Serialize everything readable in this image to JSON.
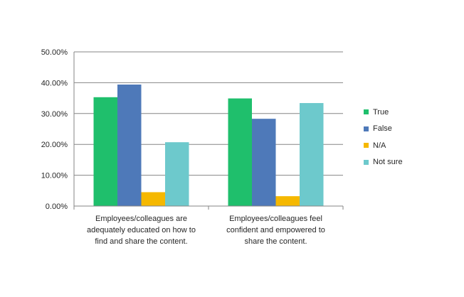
{
  "chart_data": {
    "type": "bar",
    "categories": [
      "Employees/colleagues are adequately educated on how to find and share the content.",
      "Employees/colleagues feel confident and empowered to share the content."
    ],
    "category_lines": [
      [
        "Employees/colleagues are",
        "adequately educated on how to",
        "find and share the content."
      ],
      [
        "Employees/colleagues feel",
        "confident and empowered to",
        "share the content."
      ]
    ],
    "series": [
      {
        "name": "True",
        "color": "#1fbf6c",
        "values": [
          35.3,
          34.9
        ]
      },
      {
        "name": "False",
        "color": "#4e79b9",
        "values": [
          39.4,
          28.3
        ]
      },
      {
        "name": "N/A",
        "color": "#f5b800",
        "values": [
          4.5,
          3.2
        ]
      },
      {
        "name": "Not sure",
        "color": "#6dc9cc",
        "values": [
          20.7,
          33.4
        ]
      }
    ],
    "ylim": [
      0,
      50
    ],
    "yticks": [
      "0.00%",
      "10.00%",
      "20.00%",
      "30.00%",
      "40.00%",
      "50.00%"
    ],
    "grid": true,
    "legend_position": "right"
  }
}
